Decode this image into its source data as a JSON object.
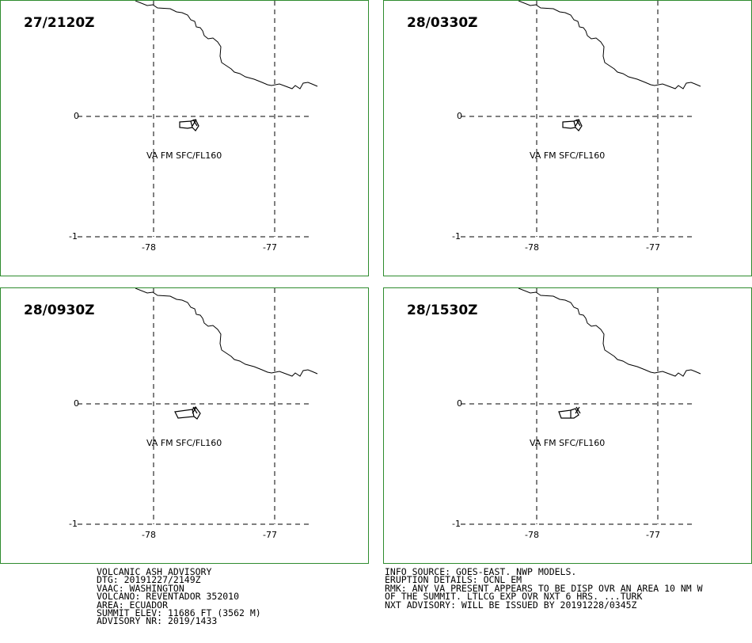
{
  "panels": [
    {
      "time": "27/2120Z",
      "ash_label": "VA FM SFC/FL160",
      "lat_labels": [
        "0",
        "-1"
      ],
      "lon_labels": [
        "-78",
        "-77"
      ]
    },
    {
      "time": "28/0330Z",
      "ash_label": "VA FM SFC/FL160",
      "lat_labels": [
        "0",
        "-1"
      ],
      "lon_labels": [
        "-78",
        "-77"
      ]
    },
    {
      "time": "28/0930Z",
      "ash_label": "VA FM SFC/FL160",
      "lat_labels": [
        "0",
        "-1"
      ],
      "lon_labels": [
        "-78",
        "-77"
      ]
    },
    {
      "time": "28/1530Z",
      "ash_label": "VA FM SFC/FL160",
      "lat_labels": [
        "0",
        "-1"
      ],
      "lon_labels": [
        "-78",
        "-77"
      ]
    }
  ],
  "advisory_left": [
    "VOLCANIC ASH ADVISORY",
    "DTG: 20191227/2149Z",
    "VAAC: WASHINGTON",
    "VOLCANO: REVENTADOR 352010",
    "AREA: ECUADOR",
    "SUMMIT ELEV: 11686 FT (3562 M)",
    "ADVISORY NR: 2019/1433"
  ],
  "advisory_right": [
    "INFO SOURCE: GOES-EAST. NWP MODELS.",
    "ERUPTION DETAILS: OCNL EM",
    "RMK: ANY VA PRESENT APPEARS TO BE DISP OVR AN AREA 10 NM W",
    "OF THE SUMMIT. LTLCG EXP OVR NXT 6 HRS. ...TURK",
    "NXT ADVISORY: WILL BE ISSUED BY 20191228/0345Z"
  ],
  "colors": {
    "panel_border": "#2e8b2e",
    "lines": "#000000"
  }
}
